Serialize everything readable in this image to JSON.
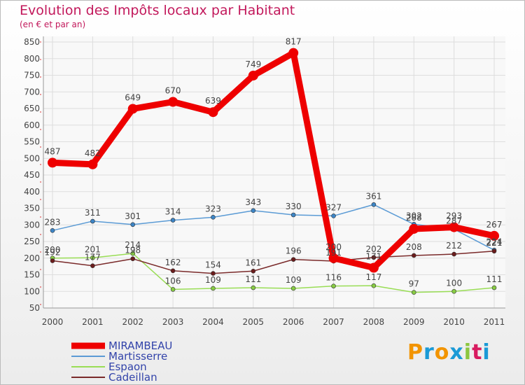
{
  "chart_data": {
    "type": "line",
    "title": "Evolution des Impôts locaux par Habitant",
    "subtitle": "(en € et par an)",
    "categories": [
      "2000",
      "2001",
      "2002",
      "2003",
      "2004",
      "2005",
      "2006",
      "2007",
      "2008",
      "2009",
      "2010",
      "2011"
    ],
    "ylim": [
      50,
      850
    ],
    "yticks": [
      50,
      100,
      150,
      200,
      250,
      300,
      350,
      400,
      450,
      500,
      550,
      600,
      650,
      700,
      750,
      800,
      850
    ],
    "grid": true,
    "series": [
      {
        "name": "Martisserre",
        "color": "#5b9bd5",
        "marker": "#3d85c6",
        "values": [
          283,
          311,
          301,
          314,
          323,
          343,
          330,
          327,
          361,
          302,
          287,
          224
        ],
        "labels": [
          "283",
          "311",
          "301",
          "314",
          "323",
          "343",
          "330",
          "327",
          "361",
          "302",
          "287",
          "224"
        ]
      },
      {
        "name": "Espaon",
        "color": "#99dd55",
        "marker": "#88cc44",
        "values": [
          200,
          201,
          214,
          106,
          109,
          111,
          109,
          116,
          117,
          97,
          100,
          111
        ],
        "labels": [
          "200",
          "201",
          "214",
          "106",
          "109",
          "111",
          "109",
          "116",
          "117",
          "97",
          "100",
          "111"
        ]
      },
      {
        "name": "Cadeillan",
        "color": "#7a2a2a",
        "marker": "#6b1c1c",
        "values": [
          192,
          177,
          198,
          162,
          154,
          161,
          196,
          191,
          202,
          208,
          212,
          221
        ],
        "labels": [
          "192",
          "177",
          "198",
          "162",
          "154",
          "161",
          "196",
          "191",
          "202",
          "208",
          "212",
          "221"
        ]
      },
      {
        "name": "MIRAMBEAU",
        "color": "#ee0000",
        "marker": "#ee0000",
        "values": [
          487,
          482,
          649,
          670,
          639,
          749,
          817,
          200,
          171,
          288,
          293,
          267
        ],
        "labels": [
          "487",
          "482",
          "649",
          "670",
          "639",
          "749",
          "817",
          "200",
          "171",
          "288",
          "293",
          "267"
        ]
      }
    ],
    "legend": [
      "MIRAMBEAU",
      "Martisserre",
      "Espaon",
      "Cadeillan"
    ],
    "legend_position": "bottom-left"
  },
  "logo": {
    "p": "P",
    "r": "r",
    "o": "o",
    "x": "x",
    "i1": "i",
    "t": "t",
    "i2": "i"
  }
}
